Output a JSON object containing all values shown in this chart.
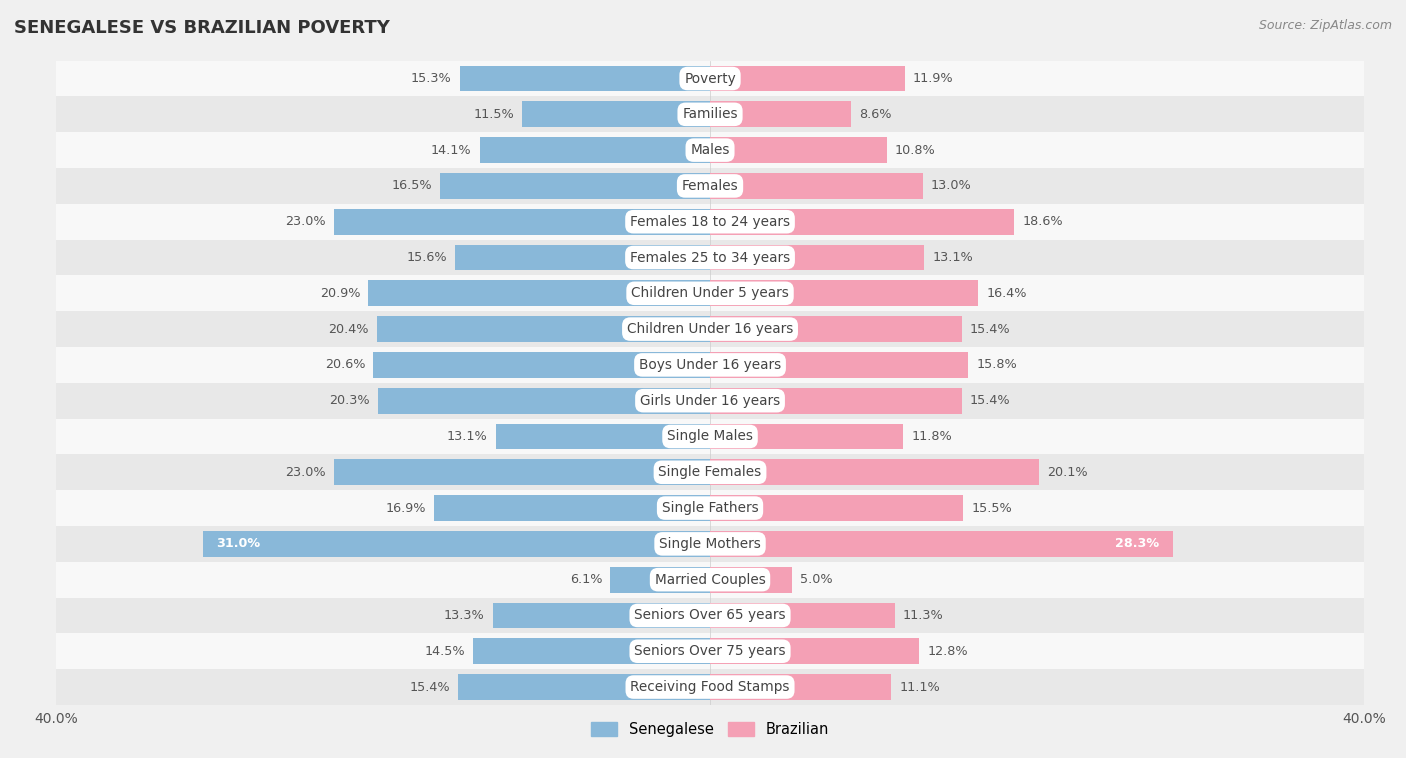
{
  "title": "SENEGALESE VS BRAZILIAN POVERTY",
  "source": "Source: ZipAtlas.com",
  "categories": [
    "Poverty",
    "Families",
    "Males",
    "Females",
    "Females 18 to 24 years",
    "Females 25 to 34 years",
    "Children Under 5 years",
    "Children Under 16 years",
    "Boys Under 16 years",
    "Girls Under 16 years",
    "Single Males",
    "Single Females",
    "Single Fathers",
    "Single Mothers",
    "Married Couples",
    "Seniors Over 65 years",
    "Seniors Over 75 years",
    "Receiving Food Stamps"
  ],
  "senegalese": [
    15.3,
    11.5,
    14.1,
    16.5,
    23.0,
    15.6,
    20.9,
    20.4,
    20.6,
    20.3,
    13.1,
    23.0,
    16.9,
    31.0,
    6.1,
    13.3,
    14.5,
    15.4
  ],
  "brazilian": [
    11.9,
    8.6,
    10.8,
    13.0,
    18.6,
    13.1,
    16.4,
    15.4,
    15.8,
    15.4,
    11.8,
    20.1,
    15.5,
    28.3,
    5.0,
    11.3,
    12.8,
    11.1
  ],
  "senegalese_color": "#89b8d9",
  "brazilian_color": "#f4a0b5",
  "axis_max": 40.0,
  "bar_height": 0.72,
  "bg_color": "#f0f0f0",
  "row_colors_even": "#f8f8f8",
  "row_colors_odd": "#e8e8e8",
  "label_fontsize": 9.8,
  "value_fontsize": 9.2,
  "title_fontsize": 13,
  "source_fontsize": 9,
  "label_pill_color": "#ffffff",
  "label_text_color": "#444444",
  "value_text_color": "#555555"
}
